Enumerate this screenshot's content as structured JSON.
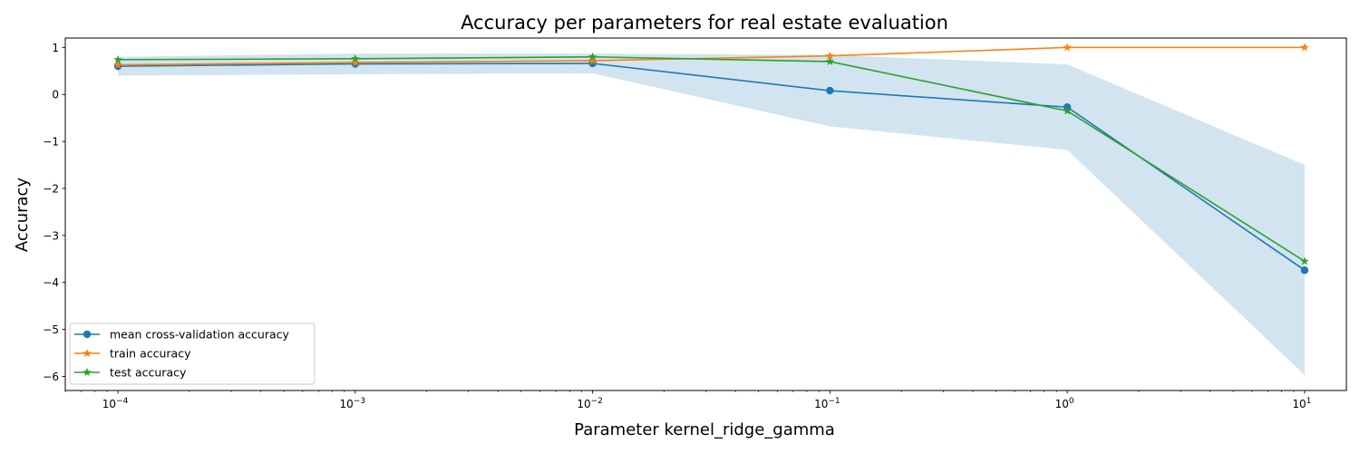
{
  "chart_data": {
    "type": "line",
    "title": "Accuracy per parameters for real estate evaluation",
    "xlabel": "Parameter kernel_ridge_gamma",
    "ylabel": "Accuracy",
    "x_scale": "log",
    "x": [
      0.0001,
      0.001,
      0.01,
      0.1,
      1,
      10
    ],
    "x_tick_labels": [
      {
        "base": "10",
        "exp": "−4"
      },
      {
        "base": "10",
        "exp": "−3"
      },
      {
        "base": "10",
        "exp": "−2"
      },
      {
        "base": "10",
        "exp": "−1"
      },
      {
        "base": "10",
        "exp": "0"
      },
      {
        "base": "10",
        "exp": "1"
      }
    ],
    "y_ticks": [
      1,
      0,
      -1,
      -2,
      -3,
      -4,
      -5,
      -6
    ],
    "y_tick_labels": [
      "1",
      "0",
      "−1",
      "−2",
      "−3",
      "−4",
      "−5",
      "−6"
    ],
    "xlim": [
      6e-05,
      15
    ],
    "ylim": [
      -6.3,
      1.2
    ],
    "grid": false,
    "legend_position": "lower-left",
    "series": [
      {
        "name": "mean cross-validation accuracy",
        "values": [
          0.6,
          0.65,
          0.66,
          0.08,
          -0.27,
          -3.74
        ],
        "color": "#1f77b4",
        "marker": "circle"
      },
      {
        "name": "train accuracy",
        "values": [
          0.63,
          0.68,
          0.72,
          0.82,
          1.0,
          1.0
        ],
        "color": "#ff7f0e",
        "marker": "star"
      },
      {
        "name": "test accuracy",
        "values": [
          0.74,
          0.76,
          0.8,
          0.7,
          -0.35,
          -3.55
        ],
        "color": "#2ca02c",
        "marker": "star"
      }
    ],
    "band": {
      "lower": [
        0.4,
        0.43,
        0.45,
        -0.68,
        -1.18,
        -5.97
      ],
      "upper": [
        0.8,
        0.87,
        0.87,
        0.84,
        0.64,
        -1.5
      ],
      "color": "#1f77b4",
      "opacity": 0.2
    }
  }
}
